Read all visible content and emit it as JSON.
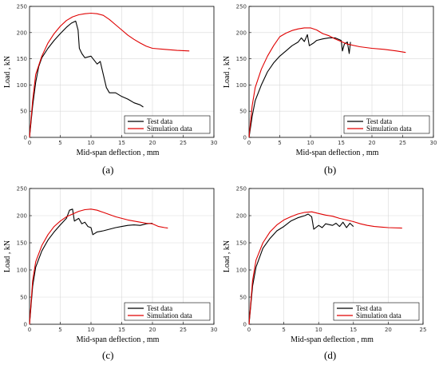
{
  "chart_data": [
    {
      "type": "line",
      "panel_label": "(a)",
      "xlabel": "Mid-span deflection , mm",
      "ylabel": "Load , kN",
      "xlim": [
        0,
        30
      ],
      "ylim": [
        0,
        250
      ],
      "xticks": [
        0,
        5,
        10,
        15,
        20,
        25,
        30
      ],
      "yticks": [
        0,
        50,
        100,
        150,
        200,
        250
      ],
      "grid": true,
      "legend_position": "bottom-right",
      "series": [
        {
          "name": "Test data",
          "color": "#000000",
          "points": [
            [
              0,
              0
            ],
            [
              0.5,
              60
            ],
            [
              1,
              105
            ],
            [
              1.5,
              135
            ],
            [
              2,
              152
            ],
            [
              3,
              170
            ],
            [
              4,
              185
            ],
            [
              5,
              198
            ],
            [
              6,
              210
            ],
            [
              6.8,
              218
            ],
            [
              7.5,
              222
            ],
            [
              7.9,
              205
            ],
            [
              8.1,
              170
            ],
            [
              8.5,
              160
            ],
            [
              9,
              152
            ],
            [
              10,
              155
            ],
            [
              11,
              140
            ],
            [
              11.5,
              145
            ],
            [
              12,
              120
            ],
            [
              12.5,
              95
            ],
            [
              13,
              85
            ],
            [
              14,
              85
            ],
            [
              15,
              78
            ],
            [
              16,
              73
            ],
            [
              17,
              66
            ],
            [
              18,
              62
            ],
            [
              18.5,
              58
            ]
          ]
        },
        {
          "name": "Simulation data",
          "color": "#e00000",
          "points": [
            [
              0,
              0
            ],
            [
              0.5,
              70
            ],
            [
              1,
              120
            ],
            [
              2,
              155
            ],
            [
              3,
              180
            ],
            [
              4,
              198
            ],
            [
              5,
              212
            ],
            [
              6,
              223
            ],
            [
              7,
              230
            ],
            [
              8,
              234
            ],
            [
              9,
              236
            ],
            [
              10,
              237
            ],
            [
              11,
              236
            ],
            [
              12,
              233
            ],
            [
              13,
              225
            ],
            [
              14,
              215
            ],
            [
              15,
              205
            ],
            [
              16,
              195
            ],
            [
              17,
              187
            ],
            [
              18,
              180
            ],
            [
              19,
              174
            ],
            [
              20,
              170
            ],
            [
              22,
              168
            ],
            [
              24,
              166
            ],
            [
              26,
              165
            ]
          ]
        }
      ]
    },
    {
      "type": "line",
      "panel_label": "(b)",
      "xlabel": "Mid-span deflection , mm",
      "ylabel": "Load , kN",
      "xlim": [
        0,
        30
      ],
      "ylim": [
        0,
        250
      ],
      "xticks": [
        0,
        5,
        10,
        15,
        20,
        25,
        30
      ],
      "yticks": [
        0,
        50,
        100,
        150,
        200,
        250
      ],
      "grid": true,
      "legend_position": "bottom-right",
      "series": [
        {
          "name": "Test data",
          "color": "#000000",
          "points": [
            [
              0,
              0
            ],
            [
              0.5,
              40
            ],
            [
              1,
              70
            ],
            [
              2,
              100
            ],
            [
              3,
              125
            ],
            [
              4,
              142
            ],
            [
              5,
              155
            ],
            [
              6,
              165
            ],
            [
              7,
              175
            ],
            [
              8,
              182
            ],
            [
              8.5,
              190
            ],
            [
              9,
              183
            ],
            [
              9.5,
              196
            ],
            [
              9.8,
              175
            ],
            [
              10.5,
              180
            ],
            [
              11,
              185
            ],
            [
              12,
              188
            ],
            [
              13,
              190
            ],
            [
              14,
              190
            ],
            [
              15,
              185
            ],
            [
              15.2,
              165
            ],
            [
              15.5,
              178
            ],
            [
              16,
              182
            ],
            [
              16.3,
              160
            ],
            [
              16.5,
              182
            ]
          ]
        },
        {
          "name": "Simulation data",
          "color": "#e00000",
          "points": [
            [
              0,
              0
            ],
            [
              0.5,
              60
            ],
            [
              1,
              95
            ],
            [
              2,
              130
            ],
            [
              3,
              155
            ],
            [
              4,
              175
            ],
            [
              5,
              192
            ],
            [
              6,
              199
            ],
            [
              7,
              204
            ],
            [
              8,
              207
            ],
            [
              9,
              209
            ],
            [
              10,
              209
            ],
            [
              11,
              205
            ],
            [
              12,
              198
            ],
            [
              13,
              194
            ],
            [
              14,
              188
            ],
            [
              15,
              183
            ],
            [
              16,
              178
            ],
            [
              18,
              173
            ],
            [
              20,
              170
            ],
            [
              22,
              168
            ],
            [
              24,
              165
            ],
            [
              25.5,
              162
            ]
          ]
        }
      ]
    },
    {
      "type": "line",
      "panel_label": "(c)",
      "xlabel": "Mid-span deflection , mm",
      "ylabel": "Load , kN",
      "xlim": [
        0,
        30
      ],
      "ylim": [
        0,
        250
      ],
      "xticks": [
        0,
        5,
        10,
        15,
        20,
        25,
        30
      ],
      "yticks": [
        0,
        50,
        100,
        150,
        200,
        250
      ],
      "grid": true,
      "legend_position": "bottom-right",
      "series": [
        {
          "name": "Test data",
          "color": "#000000",
          "points": [
            [
              0,
              0
            ],
            [
              0.5,
              70
            ],
            [
              1,
              105
            ],
            [
              2,
              135
            ],
            [
              3,
              155
            ],
            [
              4,
              170
            ],
            [
              5,
              183
            ],
            [
              6,
              195
            ],
            [
              6.5,
              210
            ],
            [
              7,
              212
            ],
            [
              7.3,
              190
            ],
            [
              8,
              195
            ],
            [
              8.5,
              185
            ],
            [
              9,
              188
            ],
            [
              9.5,
              180
            ],
            [
              10,
              178
            ],
            [
              10.3,
              165
            ],
            [
              11,
              170
            ],
            [
              12,
              172
            ],
            [
              13,
              175
            ],
            [
              14,
              178
            ],
            [
              15,
              180
            ],
            [
              16,
              182
            ],
            [
              17,
              183
            ],
            [
              18,
              182
            ],
            [
              19,
              185
            ],
            [
              20,
              186
            ]
          ]
        },
        {
          "name": "Simulation data",
          "color": "#e00000",
          "points": [
            [
              0,
              0
            ],
            [
              0.5,
              80
            ],
            [
              1,
              115
            ],
            [
              2,
              145
            ],
            [
              3,
              165
            ],
            [
              4,
              180
            ],
            [
              5,
              190
            ],
            [
              6,
              198
            ],
            [
              7,
              203
            ],
            [
              8,
              208
            ],
            [
              9,
              211
            ],
            [
              10,
              212
            ],
            [
              11,
              210
            ],
            [
              12,
              206
            ],
            [
              13,
              202
            ],
            [
              14,
              198
            ],
            [
              15,
              195
            ],
            [
              16,
              192
            ],
            [
              17,
              190
            ],
            [
              18,
              188
            ],
            [
              19,
              186
            ],
            [
              20,
              185
            ],
            [
              21,
              180
            ],
            [
              22,
              178
            ],
            [
              22.5,
              177
            ]
          ]
        }
      ]
    },
    {
      "type": "line",
      "panel_label": "(d)",
      "xlabel": "Mid-span deflection , mm",
      "ylabel": "Load , kN",
      "xlim": [
        0,
        25
      ],
      "ylim": [
        0,
        250
      ],
      "xticks": [
        0,
        5,
        10,
        15,
        20,
        25
      ],
      "yticks": [
        0,
        50,
        100,
        150,
        200,
        250
      ],
      "grid": true,
      "legend_position": "bottom-right",
      "series": [
        {
          "name": "Test data",
          "color": "#000000",
          "points": [
            [
              0,
              0
            ],
            [
              0.5,
              70
            ],
            [
              1,
              105
            ],
            [
              2,
              140
            ],
            [
              3,
              158
            ],
            [
              4,
              172
            ],
            [
              5,
              180
            ],
            [
              6,
              190
            ],
            [
              7,
              196
            ],
            [
              8,
              200
            ],
            [
              8.5,
              203
            ],
            [
              9,
              198
            ],
            [
              9.3,
              175
            ],
            [
              10,
              182
            ],
            [
              10.5,
              178
            ],
            [
              11,
              185
            ],
            [
              12,
              182
            ],
            [
              12.5,
              186
            ],
            [
              13,
              180
            ],
            [
              13.5,
              188
            ],
            [
              14,
              178
            ],
            [
              14.5,
              186
            ],
            [
              15,
              180
            ]
          ]
        },
        {
          "name": "Simulation data",
          "color": "#e00000",
          "points": [
            [
              0,
              0
            ],
            [
              0.5,
              80
            ],
            [
              1,
              118
            ],
            [
              2,
              150
            ],
            [
              3,
              170
            ],
            [
              4,
              183
            ],
            [
              5,
              192
            ],
            [
              6,
              198
            ],
            [
              7,
              203
            ],
            [
              8,
              206
            ],
            [
              9,
              207
            ],
            [
              10,
              204
            ],
            [
              11,
              201
            ],
            [
              12,
              199
            ],
            [
              13,
              195
            ],
            [
              14,
              192
            ],
            [
              15,
              189
            ],
            [
              16,
              185
            ],
            [
              17,
              182
            ],
            [
              18,
              180
            ],
            [
              19,
              179
            ],
            [
              20,
              178
            ],
            [
              22,
              177
            ]
          ]
        }
      ]
    }
  ]
}
